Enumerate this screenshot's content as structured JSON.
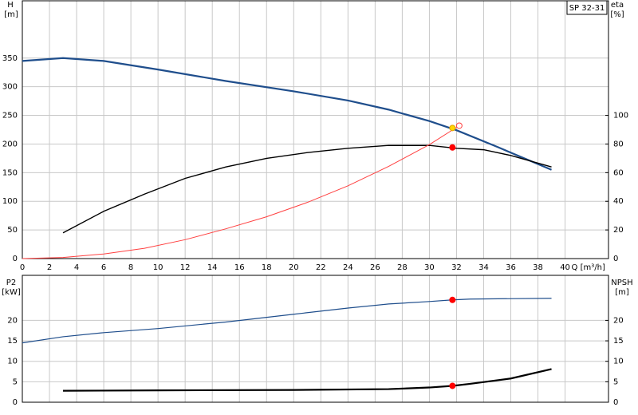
{
  "chart_data": [
    {
      "type": "line",
      "legend_label": "SP 32-31",
      "y_label": [
        "H",
        "[m]"
      ],
      "y2_label": [
        "eta",
        "[%]"
      ],
      "x_label": "Q [m³/h]",
      "xlim": [
        0,
        43.2
      ],
      "xticks": [
        0,
        2,
        4,
        6,
        8,
        10,
        12,
        14,
        16,
        18,
        20,
        22,
        24,
        26,
        28,
        30,
        32,
        34,
        36,
        38,
        40
      ],
      "ylim": [
        0,
        450
      ],
      "yticks": [
        0,
        50,
        100,
        150,
        200,
        250,
        300,
        350
      ],
      "y2lim": [
        0,
        180
      ],
      "y2ticks": [
        0,
        20,
        40,
        60,
        80,
        100
      ],
      "grid": true,
      "series": [
        {
          "color": "#1f4e8c",
          "width": 2.2,
          "x": [
            0,
            3,
            6,
            10,
            15,
            20,
            24,
            27,
            30,
            32,
            35,
            39
          ],
          "values": [
            345,
            350,
            345,
            330,
            310,
            292,
            276,
            260,
            240,
            224,
            195,
            155
          ]
        },
        {
          "color": "#000000",
          "width": 1.4,
          "axis": "y2",
          "x": [
            3,
            6,
            9,
            12,
            15,
            18,
            21,
            24,
            27,
            30,
            32,
            34,
            36,
            39
          ],
          "values": [
            18,
            33,
            45,
            56,
            64,
            70,
            74,
            77,
            79,
            79,
            77,
            76,
            72,
            64
          ]
        },
        {
          "color": "#ff4040",
          "width": 1,
          "x": [
            0,
            3,
            6,
            9,
            12,
            15,
            18,
            21,
            24,
            27,
            30,
            32
          ],
          "values": [
            0,
            2,
            8,
            18,
            33,
            52,
            73,
            98,
            127,
            161,
            199,
            229
          ]
        }
      ],
      "points": [
        {
          "x": 31.7,
          "y": 194,
          "color": "#ff0000",
          "fill": "#ff0000"
        },
        {
          "x": 32.2,
          "y": 232,
          "color": "#ff4040",
          "fill": "#ffffff"
        },
        {
          "x": 31.7,
          "y": 228,
          "color": "#e0a000",
          "fill": "#ffd700"
        }
      ]
    },
    {
      "type": "line",
      "y_label": [
        "P2",
        "[kW]"
      ],
      "y2_label": [
        "NPSH",
        "[m]"
      ],
      "xlim": [
        0,
        43.2
      ],
      "ylim": [
        0,
        31
      ],
      "yticks": [
        0,
        5,
        10,
        15,
        20
      ],
      "y2lim": [
        0,
        31
      ],
      "y2ticks": [
        0,
        5,
        10,
        15,
        20
      ],
      "grid": true,
      "series": [
        {
          "color": "#1f4e8c",
          "width": 1.2,
          "x": [
            0,
            3,
            6,
            10,
            15,
            20,
            24,
            27,
            30,
            31.7,
            33,
            39
          ],
          "values": [
            14.5,
            16,
            17,
            18,
            19.6,
            21.5,
            23,
            24,
            24.6,
            25,
            25.2,
            25.4
          ]
        },
        {
          "color": "#000000",
          "width": 2.2,
          "axis": "y2",
          "x": [
            3,
            10,
            20,
            27,
            30,
            31.7,
            33,
            36,
            39
          ],
          "values": [
            2.8,
            2.9,
            3.0,
            3.2,
            3.6,
            4,
            4.5,
            5.8,
            8.1
          ]
        }
      ],
      "points": [
        {
          "x": 31.7,
          "y": 25,
          "color": "#ff0000",
          "fill": "#ff0000"
        },
        {
          "x": 31.7,
          "y": 4,
          "color": "#ff0000",
          "fill": "#ff0000",
          "axis": "y2"
        }
      ]
    }
  ]
}
